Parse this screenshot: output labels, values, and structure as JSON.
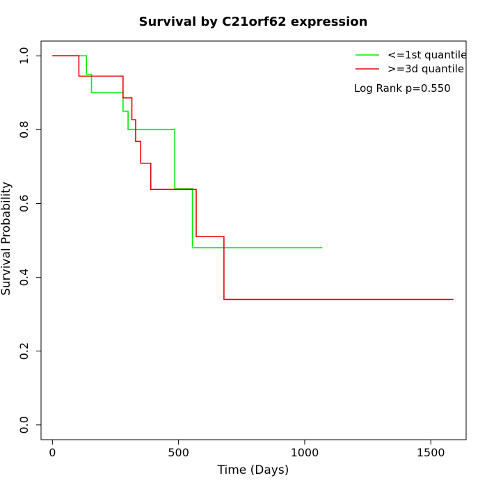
{
  "chart_data": {
    "type": "line",
    "title": "Survival by C21orf62 expression",
    "xlabel": "Time (Days)",
    "ylabel": "Survival Probability",
    "xlim": [
      -45,
      1640
    ],
    "ylim": [
      -0.04,
      1.04
    ],
    "x_ticks": [
      0,
      500,
      1000,
      1500
    ],
    "y_ticks": [
      0.0,
      0.2,
      0.4,
      0.6,
      0.8,
      1.0
    ],
    "x_tick_labels": [
      "0",
      "500",
      "1000",
      "1500"
    ],
    "y_tick_labels": [
      "0.0",
      "0.2",
      "0.4",
      "0.6",
      "0.8",
      "1.0"
    ],
    "grid": false,
    "legend_position": "top-right",
    "annotation": "Log Rank p=0.550",
    "series": [
      {
        "name": "<=1st quantile",
        "color": "#00ee00",
        "step": true,
        "x": [
          0,
          135,
          155,
          280,
          300,
          485,
          555,
          1070
        ],
        "y": [
          1.0,
          0.95,
          0.9,
          0.85,
          0.8,
          0.64,
          0.48,
          0.48
        ]
      },
      {
        "name": ">=3d quantile",
        "color": "#ee0000",
        "step": true,
        "x": [
          0,
          105,
          280,
          315,
          330,
          350,
          390,
          570,
          680,
          1590
        ],
        "y": [
          1.0,
          0.945,
          0.886,
          0.827,
          0.768,
          0.709,
          0.638,
          0.51,
          0.34,
          0.34
        ]
      }
    ]
  }
}
